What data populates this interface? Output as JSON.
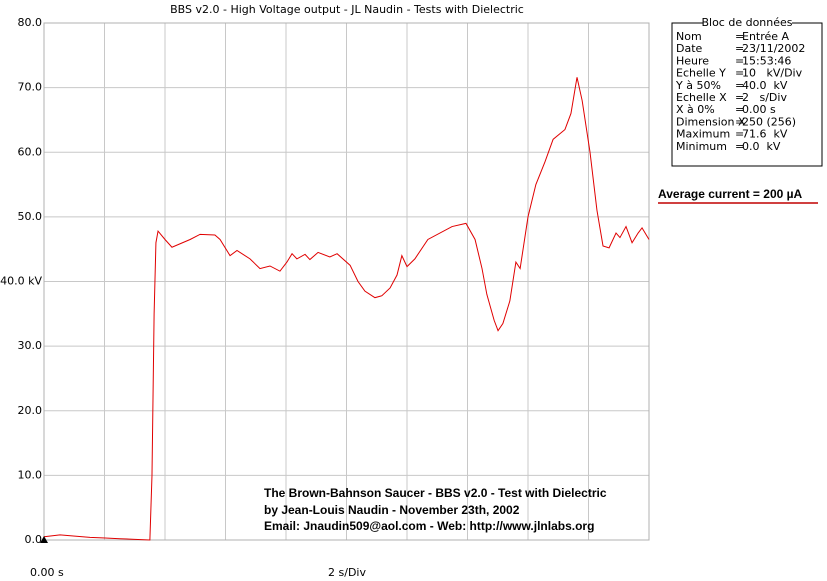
{
  "chart_data": {
    "type": "line",
    "title": "BBS v2.0 - High Voltage output - JL Naudin - Tests with Dielectric",
    "color": "#e00000",
    "grid": true,
    "xlim": [
      0,
      20
    ],
    "ylim": [
      0,
      80
    ],
    "xgrid": [
      0,
      2,
      4,
      6,
      8,
      10,
      12,
      14,
      16,
      18,
      20
    ],
    "yticks": [
      {
        "value": 0,
        "label": "0.0"
      },
      {
        "value": 10,
        "label": "10.0"
      },
      {
        "value": 20,
        "label": "20.0"
      },
      {
        "value": 30,
        "label": "30.0"
      },
      {
        "value": 40,
        "label": "40.0 kV"
      },
      {
        "value": 50,
        "label": "50.0"
      },
      {
        "value": 60,
        "label": "60.0"
      },
      {
        "value": 70,
        "label": "70.0"
      },
      {
        "value": 80,
        "label": "80.0"
      }
    ],
    "x_start_label": "0.00 s",
    "x_division_label": "2 s/Div",
    "x": [
      0,
      0.53,
      1.02,
      1.52,
      2.02,
      2.51,
      3.01,
      3.5,
      3.57,
      3.64,
      3.7,
      3.77,
      4.0,
      4.23,
      4.83,
      5.16,
      5.65,
      5.82,
      6.15,
      6.38,
      6.81,
      7.14,
      7.47,
      7.8,
      8.03,
      8.2,
      8.36,
      8.63,
      8.79,
      9.06,
      9.45,
      9.69,
      10.12,
      10.38,
      10.61,
      10.94,
      11.17,
      11.44,
      11.67,
      11.83,
      12.0,
      12.26,
      12.69,
      13.49,
      13.95,
      14.25,
      14.48,
      14.64,
      14.88,
      15.01,
      15.17,
      15.4,
      15.6,
      15.74,
      16.0,
      16.26,
      16.56,
      16.83,
      17.22,
      17.42,
      17.62,
      17.79,
      18.05,
      18.28,
      18.48,
      18.68,
      18.91,
      19.04,
      19.24,
      19.44,
      19.64,
      19.77,
      20
    ],
    "values": [
      0.5,
      0.8,
      0.6,
      0.4,
      0.3,
      0.2,
      0.1,
      0,
      10,
      35,
      46,
      47.8,
      46.5,
      45.3,
      46.5,
      47.3,
      47.2,
      46.5,
      44,
      44.8,
      43.5,
      42,
      42.4,
      41.6,
      43,
      44.3,
      43.5,
      44.2,
      43.4,
      44.5,
      43.8,
      44.3,
      42.5,
      40,
      38.5,
      37.5,
      37.8,
      39,
      41,
      44,
      42.3,
      43.5,
      46.5,
      48.5,
      49,
      46.5,
      42,
      38,
      34,
      32.4,
      33.5,
      37,
      43,
      42,
      50,
      55,
      58.5,
      62,
      63.5,
      66,
      71.6,
      68,
      60,
      51,
      45.5,
      45.2,
      47.5,
      46.8,
      48.5,
      46,
      47.5,
      48.3,
      46.5
    ],
    "annotations": [
      "The Brown-Bahnson Saucer - BBS v2.0 - Test with Dielectric",
      "by Jean-Louis Naudin - November 23th, 2002",
      "Email: Jnaudin509@aol.com - Web: http://www.jlnlabs.org"
    ],
    "average_current": "Average current = 200 µA"
  },
  "info_panel": {
    "title": "Bloc de données",
    "rows": [
      [
        "Nom",
        "=",
        "Entrée A"
      ],
      [
        "Date",
        "=",
        "23/11/2002"
      ],
      [
        "Heure",
        "=",
        "15:53:46"
      ],
      [
        "Echelle Y",
        "=",
        "10   kV/Div"
      ],
      [
        "Y à 50%",
        "=",
        "40.0  kV"
      ],
      [
        "Echelle X",
        "=",
        "2   s/Div"
      ],
      [
        "X à 0%",
        "=",
        "0.00 s"
      ],
      [
        "Dimension X",
        "=",
        "250 (256)"
      ],
      [
        "Maximum",
        "=",
        "71.6  kV"
      ],
      [
        "Minimum",
        "=",
        "0.0  kV"
      ]
    ]
  }
}
